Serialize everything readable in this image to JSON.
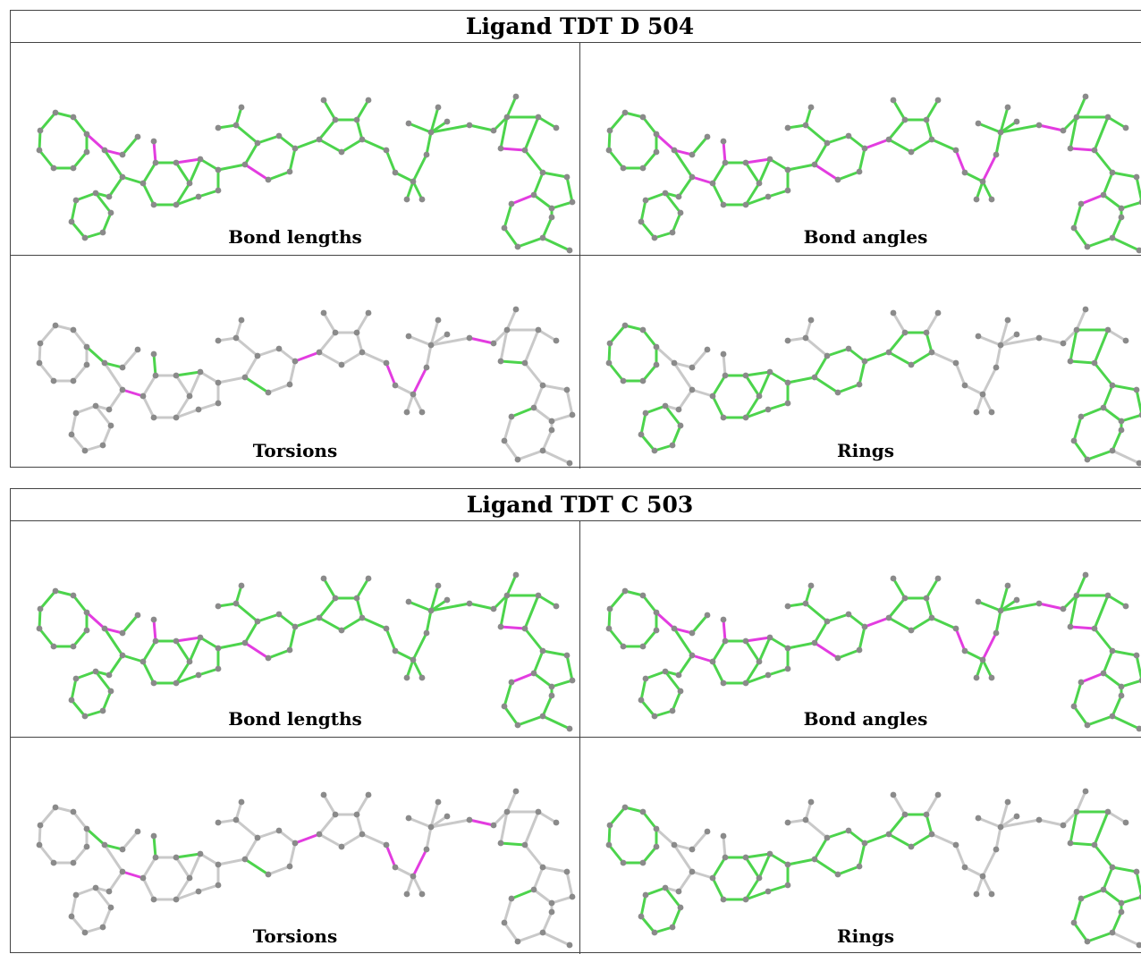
{
  "blocks": [
    {
      "title": "Ligand TDT D 504",
      "panels": [
        {
          "label": "Bond lengths",
          "scheme": "lengths"
        },
        {
          "label": "Bond angles",
          "scheme": "angles"
        },
        {
          "label": "Torsions",
          "scheme": "torsions"
        },
        {
          "label": "Rings",
          "scheme": "rings"
        }
      ]
    },
    {
      "title": "Ligand TDT C 503",
      "panels": [
        {
          "label": "Bond lengths",
          "scheme": "lengths"
        },
        {
          "label": "Bond angles",
          "scheme": "angles"
        },
        {
          "label": "Torsions",
          "scheme": "torsions"
        },
        {
          "label": "Rings",
          "scheme": "rings"
        }
      ]
    }
  ],
  "colors": {
    "ok": "#4cd44c",
    "outlier": "#e33ce0",
    "neutral": "#c9c9c9",
    "atom": "#8a8a8a",
    "border": "#444444"
  }
}
